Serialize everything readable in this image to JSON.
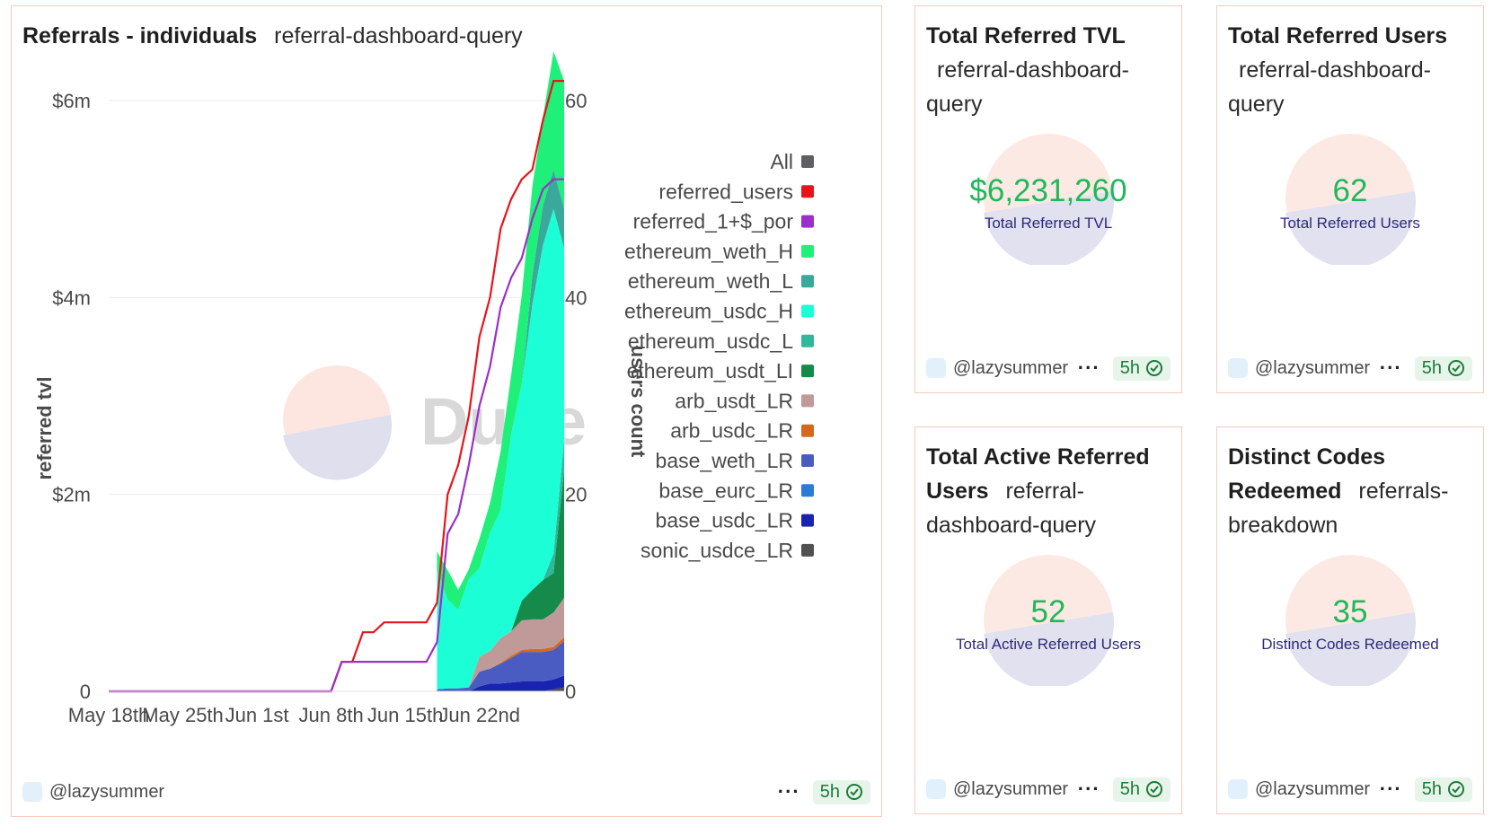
{
  "chart_panel": {
    "title": "Referrals - individuals",
    "query": "referral-dashboard-query",
    "user": "@lazysummer",
    "badge": "5h"
  },
  "cards": [
    {
      "id": "card-tvl",
      "title": "Total Referred TVL",
      "query": "referral-dashboard-query",
      "value": "$6,231,260",
      "label": "Total Referred TVL",
      "user": "@lazysummer",
      "badge": "5h"
    },
    {
      "id": "card-users",
      "title": "Total Referred Users",
      "query": "referral-dashboard-query",
      "value": "62",
      "label": "Total Referred Users",
      "user": "@lazysummer",
      "badge": "5h"
    },
    {
      "id": "card-active",
      "title": "Total Active Referred Users",
      "query": "referral-dashboard-query",
      "value": "52",
      "label": "Total Active Referred Users",
      "user": "@lazysummer",
      "badge": "5h"
    },
    {
      "id": "card-codes",
      "title": "Distinct Codes Redeemed",
      "query": "referrals-breakdown",
      "value": "35",
      "label": "Distinct Codes Redeemed",
      "user": "@lazysummer",
      "badge": "5h"
    }
  ],
  "colors": {
    "border": "#f6c9bd",
    "counter_value": "#1fb85a",
    "counter_label": "#2a2a7a",
    "badge_bg": "#e6f4ea",
    "badge_text": "#1e7b3a"
  },
  "chart_data": {
    "type": "area",
    "watermark": "Dune",
    "ylabel": "referred tvl",
    "y2label": "users count",
    "ylim": [
      0,
      6000000
    ],
    "y2lim": [
      0,
      60
    ],
    "yticks": [
      {
        "value": 0,
        "label": "0"
      },
      {
        "value": 2000000,
        "label": "$2m"
      },
      {
        "value": 4000000,
        "label": "$4m"
      },
      {
        "value": 6000000,
        "label": "$6m"
      }
    ],
    "y2ticks": [
      {
        "value": 0,
        "label": "0"
      },
      {
        "value": 20,
        "label": "20"
      },
      {
        "value": 40,
        "label": "40"
      },
      {
        "value": 60,
        "label": "60"
      }
    ],
    "xlim": [
      0,
      43
    ],
    "xticks": [
      {
        "day": 0,
        "label": "May 18th"
      },
      {
        "day": 7,
        "label": "May 25th"
      },
      {
        "day": 14,
        "label": "Jun 1st"
      },
      {
        "day": 21,
        "label": "Jun 8th"
      },
      {
        "day": 28,
        "label": "Jun 15th"
      },
      {
        "day": 35,
        "label": "Jun 22nd"
      }
    ],
    "legend": [
      {
        "name": "All",
        "color": "#5f5f63"
      },
      {
        "name": "referred_users",
        "color": "#e8141c"
      },
      {
        "name": "referred_1+$_por",
        "color": "#9b2fc9"
      },
      {
        "name": "ethereum_weth_H",
        "color": "#1ff07a"
      },
      {
        "name": "ethereum_weth_L",
        "color": "#3aa89a"
      },
      {
        "name": "ethereum_usdc_H",
        "color": "#1cffd6"
      },
      {
        "name": "ethereum_usdc_L",
        "color": "#2fb89a"
      },
      {
        "name": "ethereum_usdt_LI",
        "color": "#168a4a"
      },
      {
        "name": "arb_usdt_LR",
        "color": "#bf9a98"
      },
      {
        "name": "arb_usdc_LR",
        "color": "#d2691e"
      },
      {
        "name": "base_weth_LR",
        "color": "#4a5cc2"
      },
      {
        "name": "base_eurc_LR",
        "color": "#2c7bd6"
      },
      {
        "name": "base_usdc_LR",
        "color": "#1a23b0"
      },
      {
        "name": "sonic_usdce_LR",
        "color": "#505050"
      }
    ],
    "days": [
      31,
      32,
      33,
      34,
      35,
      36,
      37,
      38,
      39,
      40,
      41,
      42,
      43
    ],
    "series": [
      {
        "name": "sonic_usdce_LR",
        "color": "#505050",
        "values": [
          0,
          0,
          0,
          0,
          0,
          0,
          0,
          0,
          0,
          0,
          0,
          20000,
          40000
        ]
      },
      {
        "name": "base_usdc_LR",
        "color": "#1a23b0",
        "values": [
          0,
          0,
          0,
          0,
          50000,
          80000,
          80000,
          90000,
          100000,
          100000,
          100000,
          100000,
          120000
        ]
      },
      {
        "name": "base_eurc_LR",
        "color": "#2c7bd6",
        "values": [
          0,
          0,
          0,
          0,
          0,
          0,
          0,
          0,
          0,
          0,
          0,
          0,
          0
        ]
      },
      {
        "name": "base_weth_LR",
        "color": "#4a5cc2",
        "values": [
          20000,
          30000,
          30000,
          40000,
          150000,
          150000,
          200000,
          250000,
          300000,
          300000,
          300000,
          300000,
          350000
        ]
      },
      {
        "name": "arb_usdc_LR",
        "color": "#d2691e",
        "values": [
          0,
          0,
          0,
          0,
          0,
          0,
          10000,
          20000,
          20000,
          30000,
          30000,
          30000,
          40000
        ]
      },
      {
        "name": "arb_usdt_LR",
        "color": "#bf9a98",
        "values": [
          0,
          0,
          0,
          0,
          150000,
          180000,
          250000,
          250000,
          300000,
          300000,
          300000,
          350000,
          400000
        ]
      },
      {
        "name": "ethereum_usdt_LI",
        "color": "#168a4a",
        "values": [
          0,
          0,
          0,
          0,
          0,
          0,
          0,
          0,
          200000,
          300000,
          400000,
          400000,
          1300000
        ]
      },
      {
        "name": "ethereum_usdc_L",
        "color": "#2fb89a",
        "values": [
          0,
          0,
          0,
          0,
          0,
          0,
          0,
          0,
          0,
          0,
          0,
          200000,
          300000
        ]
      },
      {
        "name": "ethereum_usdc_H",
        "color": "#1cffd6",
        "values": [
          1200000,
          900000,
          800000,
          1100000,
          900000,
          1200000,
          1300000,
          2000000,
          2200000,
          2900000,
          3400000,
          3500000,
          1950000
        ]
      },
      {
        "name": "ethereum_weth_L",
        "color": "#3aa89a",
        "values": [
          0,
          0,
          0,
          0,
          0,
          0,
          0,
          0,
          0,
          300000,
          400000,
          400000,
          400000
        ]
      },
      {
        "name": "ethereum_weth_H",
        "color": "#1ff07a",
        "values": [
          200000,
          300000,
          200000,
          100000,
          300000,
          300000,
          600000,
          600000,
          900000,
          900000,
          900000,
          1200000,
          1300000
        ]
      }
    ],
    "lines": [
      {
        "name": "referred_users",
        "color": "#e8141c",
        "axis": "right",
        "x": [
          0,
          21,
          22,
          23,
          24,
          25,
          26,
          27,
          28,
          29,
          30,
          31,
          32,
          33,
          34,
          35,
          36,
          37,
          38,
          39,
          40,
          41,
          42,
          43
        ],
        "y": [
          0,
          0,
          3,
          3,
          6,
          6,
          7,
          7,
          7,
          7,
          7,
          9,
          20,
          23,
          28,
          36,
          40,
          47,
          50,
          52,
          53,
          58,
          62,
          62
        ]
      },
      {
        "name": "referred_1+$_por",
        "color": "#9b2fc9",
        "axis": "right",
        "x": [
          0,
          21,
          22,
          23,
          24,
          25,
          26,
          27,
          28,
          29,
          30,
          31,
          32,
          33,
          34,
          35,
          36,
          37,
          38,
          39,
          40,
          41,
          42,
          43
        ],
        "y": [
          0,
          0,
          3,
          3,
          3,
          3,
          3,
          3,
          3,
          3,
          3,
          5,
          16,
          18,
          23,
          29,
          33,
          39,
          42,
          44,
          48,
          51,
          52,
          52
        ]
      }
    ]
  }
}
